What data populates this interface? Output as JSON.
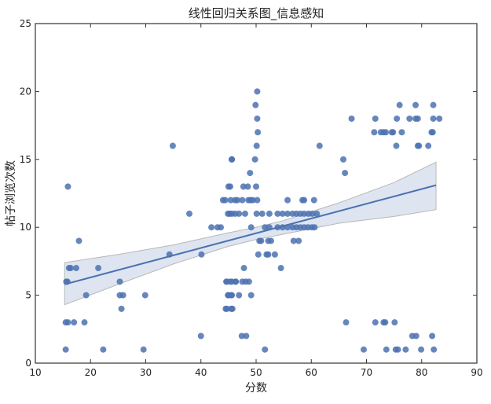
{
  "chart_data": {
    "type": "scatter",
    "title": "线性回归关系图_信息感知",
    "xlabel": "分数",
    "ylabel": "帖子浏览次数",
    "xlim": [
      10,
      90
    ],
    "ylim": [
      0,
      25
    ],
    "xticks": [
      10,
      20,
      30,
      40,
      50,
      60,
      70,
      80,
      90
    ],
    "yticks": [
      0,
      5,
      10,
      15,
      20,
      25
    ],
    "grid": false,
    "point_color": "#4c72b0",
    "band_color": "#c8d3e8",
    "points": [
      [
        15.9,
        13
      ],
      [
        34.9,
        16
      ],
      [
        45.6,
        15
      ],
      [
        37.9,
        11
      ],
      [
        45,
        13
      ],
      [
        44,
        12
      ],
      [
        45.4,
        12
      ],
      [
        44.9,
        11
      ],
      [
        45.6,
        11
      ],
      [
        41.9,
        10
      ],
      [
        43,
        10
      ],
      [
        43.6,
        10
      ],
      [
        17.9,
        9
      ],
      [
        34.3,
        8
      ],
      [
        40.1,
        8
      ],
      [
        16.1,
        7
      ],
      [
        16.4,
        7
      ],
      [
        17.4,
        7
      ],
      [
        21.4,
        7
      ],
      [
        15.6,
        6
      ],
      [
        15.8,
        6
      ],
      [
        25.3,
        6
      ],
      [
        44.7,
        6
      ],
      [
        45.6,
        6
      ],
      [
        46.3,
        6
      ],
      [
        19.2,
        5
      ],
      [
        25.3,
        5
      ],
      [
        25.9,
        5
      ],
      [
        29.9,
        5
      ],
      [
        45,
        5
      ],
      [
        45.6,
        5
      ],
      [
        25.6,
        4
      ],
      [
        44.7,
        4
      ],
      [
        45.7,
        4
      ],
      [
        15.5,
        3
      ],
      [
        15.9,
        3
      ],
      [
        17.0,
        3
      ],
      [
        18.9,
        3
      ],
      [
        40,
        2
      ],
      [
        15.5,
        1
      ],
      [
        22.3,
        1
      ],
      [
        29.6,
        1
      ],
      [
        50.2,
        20
      ],
      [
        49.9,
        19
      ],
      [
        50.2,
        18
      ],
      [
        50.3,
        17
      ],
      [
        50.1,
        16
      ],
      [
        61.5,
        16
      ],
      [
        45.6,
        15
      ],
      [
        49.8,
        15
      ],
      [
        48.9,
        14
      ],
      [
        45.3,
        13
      ],
      [
        47.7,
        13
      ],
      [
        48.5,
        13
      ],
      [
        50,
        13
      ],
      [
        44.4,
        12
      ],
      [
        46.2,
        12
      ],
      [
        46.6,
        12
      ],
      [
        47.5,
        12
      ],
      [
        48.6,
        12
      ],
      [
        49,
        12
      ],
      [
        49.4,
        12
      ],
      [
        50.2,
        12
      ],
      [
        55.7,
        12
      ],
      [
        58.4,
        12
      ],
      [
        58.7,
        12
      ],
      [
        60.5,
        12
      ],
      [
        45.2,
        11
      ],
      [
        46.2,
        11
      ],
      [
        46.9,
        11
      ],
      [
        48,
        11
      ],
      [
        50.1,
        11
      ],
      [
        51.1,
        11
      ],
      [
        52.4,
        11
      ],
      [
        53.9,
        11
      ],
      [
        54.8,
        11
      ],
      [
        55.7,
        11
      ],
      [
        56.6,
        11
      ],
      [
        57.3,
        11
      ],
      [
        58,
        11
      ],
      [
        58.7,
        11
      ],
      [
        59.5,
        11
      ],
      [
        60.2,
        11
      ],
      [
        61,
        11
      ],
      [
        49.1,
        10
      ],
      [
        51.6,
        10
      ],
      [
        52.4,
        10
      ],
      [
        53.9,
        10
      ],
      [
        54.8,
        10
      ],
      [
        55.7,
        10
      ],
      [
        56.6,
        10
      ],
      [
        57.3,
        10
      ],
      [
        58,
        10
      ],
      [
        58.7,
        10
      ],
      [
        59.4,
        10
      ],
      [
        60.1,
        10
      ],
      [
        60.6,
        10
      ],
      [
        50.6,
        9
      ],
      [
        50.9,
        9
      ],
      [
        52.2,
        9
      ],
      [
        52.7,
        9
      ],
      [
        56.8,
        9
      ],
      [
        57.7,
        9
      ],
      [
        50.4,
        8
      ],
      [
        51.9,
        8
      ],
      [
        52.2,
        8
      ],
      [
        53.4,
        8
      ],
      [
        47.8,
        7
      ],
      [
        54.5,
        7
      ],
      [
        44.6,
        6
      ],
      [
        45.3,
        6
      ],
      [
        46.3,
        6
      ],
      [
        47.5,
        6
      ],
      [
        48.1,
        6
      ],
      [
        48.7,
        6
      ],
      [
        44.9,
        5
      ],
      [
        45.5,
        5
      ],
      [
        46.9,
        5
      ],
      [
        49.1,
        5
      ],
      [
        44.5,
        4
      ],
      [
        45.5,
        4
      ],
      [
        47.4,
        2
      ],
      [
        48.2,
        2
      ],
      [
        51.6,
        1
      ],
      [
        76,
        19
      ],
      [
        78.9,
        19
      ],
      [
        82.1,
        19
      ],
      [
        67.3,
        18
      ],
      [
        71.6,
        18
      ],
      [
        75.5,
        18
      ],
      [
        77.8,
        18
      ],
      [
        78.9,
        18
      ],
      [
        79.3,
        18
      ],
      [
        82.1,
        18
      ],
      [
        83.2,
        18
      ],
      [
        71.4,
        17
      ],
      [
        72.6,
        17
      ],
      [
        73.1,
        17
      ],
      [
        73.5,
        17
      ],
      [
        74.6,
        17
      ],
      [
        74.8,
        17
      ],
      [
        76.4,
        17
      ],
      [
        81.8,
        17
      ],
      [
        82,
        17
      ],
      [
        75.4,
        16
      ],
      [
        79.3,
        16
      ],
      [
        79.5,
        16
      ],
      [
        81.2,
        16
      ],
      [
        65.8,
        15
      ],
      [
        66.1,
        14
      ],
      [
        66.3,
        3
      ],
      [
        71.6,
        3
      ],
      [
        73.1,
        3
      ],
      [
        73.4,
        3
      ],
      [
        75.1,
        3
      ],
      [
        78.3,
        2
      ],
      [
        79,
        2
      ],
      [
        81.9,
        2
      ],
      [
        69.5,
        1
      ],
      [
        73.6,
        1
      ],
      [
        75.3,
        1
      ],
      [
        75.7,
        1
      ],
      [
        77.1,
        1
      ],
      [
        79.9,
        1
      ],
      [
        82.2,
        1
      ]
    ],
    "regression": {
      "x": [
        15.3,
        82.6
      ],
      "y": [
        5.8,
        13.1
      ]
    },
    "confidence_band": {
      "x": [
        15.3,
        25,
        35,
        45,
        50,
        55,
        65,
        75,
        82.6
      ],
      "lower": [
        4.3,
        5.8,
        7.3,
        8.6,
        9.1,
        9.5,
        10.3,
        10.8,
        11.3
      ],
      "upper": [
        7.4,
        8.0,
        8.7,
        9.6,
        10.0,
        10.5,
        11.8,
        13.3,
        14.8
      ]
    }
  }
}
